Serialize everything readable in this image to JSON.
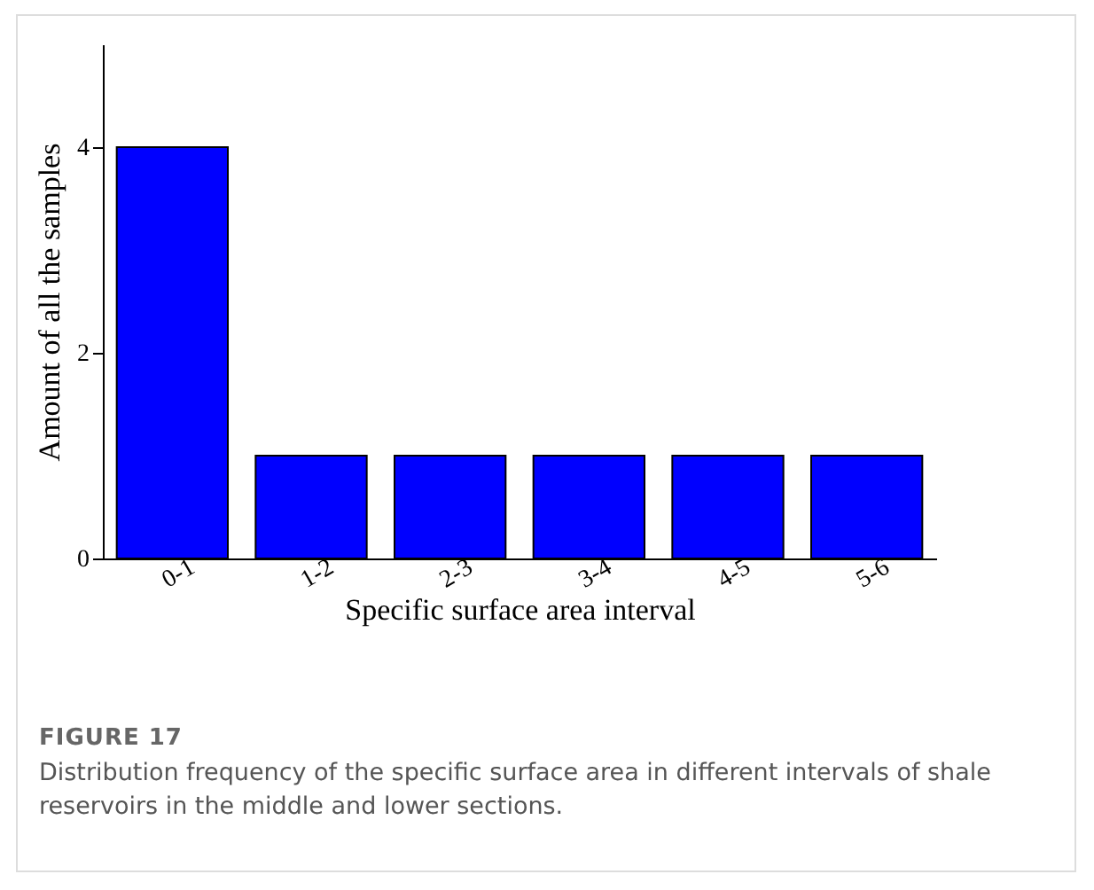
{
  "chart_data": {
    "type": "bar",
    "xlabel": "Specific surface area interval",
    "ylabel": "Amount of all the samples",
    "categories": [
      "0-1",
      "1-2",
      "2-3",
      "3-4",
      "4-5",
      "5-6"
    ],
    "values": [
      4,
      1,
      1,
      1,
      1,
      1
    ],
    "color": "#0000ff",
    "ylim": [
      0,
      5
    ],
    "yticks": [
      0,
      2,
      4
    ],
    "grid": false,
    "legend": false,
    "annotations": [
      "FIGURE 17",
      "Distribution frequency of the specific surface area in different intervals of shale reservoirs in the middle and lower sections."
    ]
  }
}
